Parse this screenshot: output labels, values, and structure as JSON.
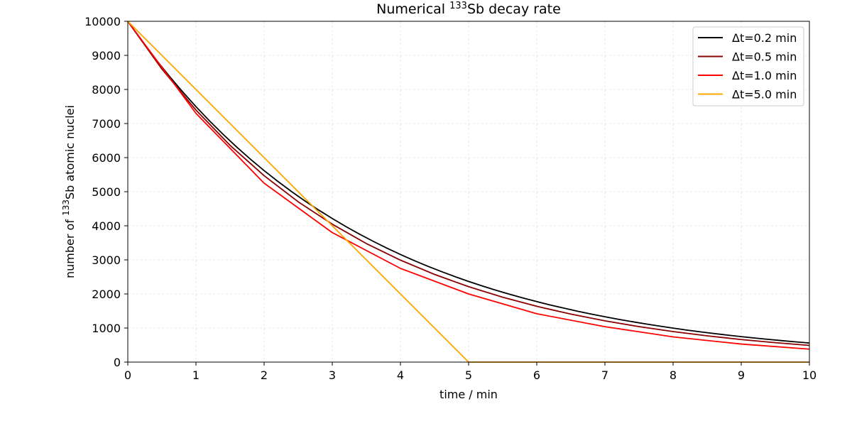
{
  "chart_data": {
    "type": "line",
    "title_main": "Numerical ",
    "title_sup": "133",
    "title_rest": "Sb decay rate",
    "xlabel": "time / min",
    "ylabel_main": "number of ",
    "ylabel_sup": "133",
    "ylabel_rest": "Sb atomic nuclei",
    "xlim": [
      0,
      10
    ],
    "ylim": [
      0,
      10000
    ],
    "xticks": [
      "0",
      "1",
      "2",
      "3",
      "4",
      "5",
      "6",
      "7",
      "8",
      "9",
      "10"
    ],
    "yticks": [
      "0",
      "1000",
      "2000",
      "3000",
      "4000",
      "5000",
      "6000",
      "7000",
      "8000",
      "9000",
      "10000"
    ],
    "grid": true,
    "legend_position": "top-right",
    "series": [
      {
        "name": "Δt=0.2 min",
        "color": "#000000",
        "x": [
          0,
          0.2,
          0.4,
          0.6,
          0.8,
          1.0,
          1.2,
          1.4,
          1.6,
          1.8,
          2.0,
          2.2,
          2.4,
          2.6,
          2.8,
          3.0,
          3.2,
          3.4,
          3.6,
          3.8,
          4.0,
          4.2,
          4.4,
          4.6,
          4.8,
          5.0,
          5.2,
          5.4,
          5.6,
          5.8,
          6.0,
          6.2,
          6.4,
          6.6,
          6.8,
          7.0,
          7.2,
          7.4,
          7.6,
          7.8,
          8.0,
          8.2,
          8.4,
          8.6,
          8.8,
          9.0,
          9.2,
          9.4,
          9.6,
          9.8,
          10.0
        ],
        "y": [
          10000,
          9440,
          8911,
          8412,
          7941,
          7496,
          7076,
          6680,
          6306,
          5953,
          5619,
          5305,
          5008,
          4727,
          4462,
          4213,
          3977,
          3754,
          3544,
          3345,
          3158,
          2981,
          2814,
          2657,
          2508,
          2368,
          2235,
          2110,
          1992,
          1880,
          1775,
          1675,
          1582,
          1493,
          1409,
          1331,
          1256,
          1186,
          1119,
          1057,
          997,
          941,
          889,
          839,
          792,
          748,
          706,
          666,
          629,
          594,
          560
        ]
      },
      {
        "name": "Δt=0.5 min",
        "color": "#8b0000",
        "x": [
          0,
          0.5,
          1.0,
          1.5,
          2.0,
          2.5,
          3.0,
          3.5,
          4.0,
          4.5,
          5.0,
          5.5,
          6.0,
          6.5,
          7.0,
          7.5,
          8.0,
          8.5,
          9.0,
          9.5,
          10.0
        ],
        "y": [
          10000,
          8600,
          7396,
          6361,
          5470,
          4704,
          4046,
          3479,
          2992,
          2573,
          2213,
          1903,
          1637,
          1408,
          1211,
          1041,
          895,
          770,
          662,
          570,
          490
        ]
      },
      {
        "name": "Δt=1.0 min",
        "color": "#ff0000",
        "x": [
          0,
          1,
          2,
          3,
          4,
          5,
          6,
          7,
          8,
          9,
          10
        ],
        "y": [
          10000,
          7300,
          5250,
          3800,
          2750,
          2000,
          1420,
          1040,
          740,
          530,
          380
        ]
      },
      {
        "name": "Δt=5.0 min",
        "color": "#ffa500",
        "x": [
          0,
          5,
          10
        ],
        "y": [
          10000,
          0,
          0
        ]
      }
    ]
  }
}
